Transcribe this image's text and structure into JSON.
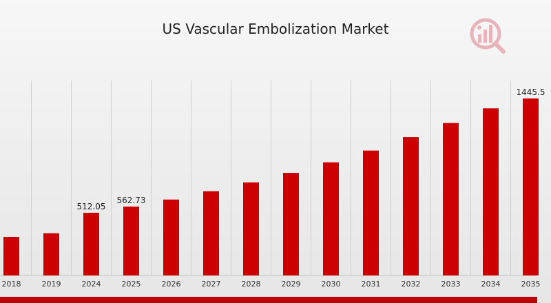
{
  "title": "US Vascular Embolization Market",
  "logo_icon": "chart-logo-icon",
  "colors": {
    "bar": "#cc0000",
    "bottom_bar": "#c00000",
    "grid": "#cfcfcf",
    "logo": "#e8a0a8"
  },
  "chart_data": {
    "type": "bar",
    "title": "US Vascular Embolization Market",
    "categories": [
      "2018",
      "2019",
      "2024",
      "2025",
      "2026",
      "2027",
      "2028",
      "2029",
      "2030",
      "2031",
      "2032",
      "2033",
      "2034",
      "2035"
    ],
    "values": [
      315,
      345,
      512.05,
      562.73,
      620,
      688,
      760,
      838,
      924,
      1020,
      1130,
      1245,
      1365,
      1445.5
    ],
    "data_labels": {
      "2024": "512.05",
      "2025": "562.73",
      "2035": "1445.5"
    },
    "xlabel": "",
    "ylabel": "",
    "grid": true,
    "legend": "none"
  }
}
